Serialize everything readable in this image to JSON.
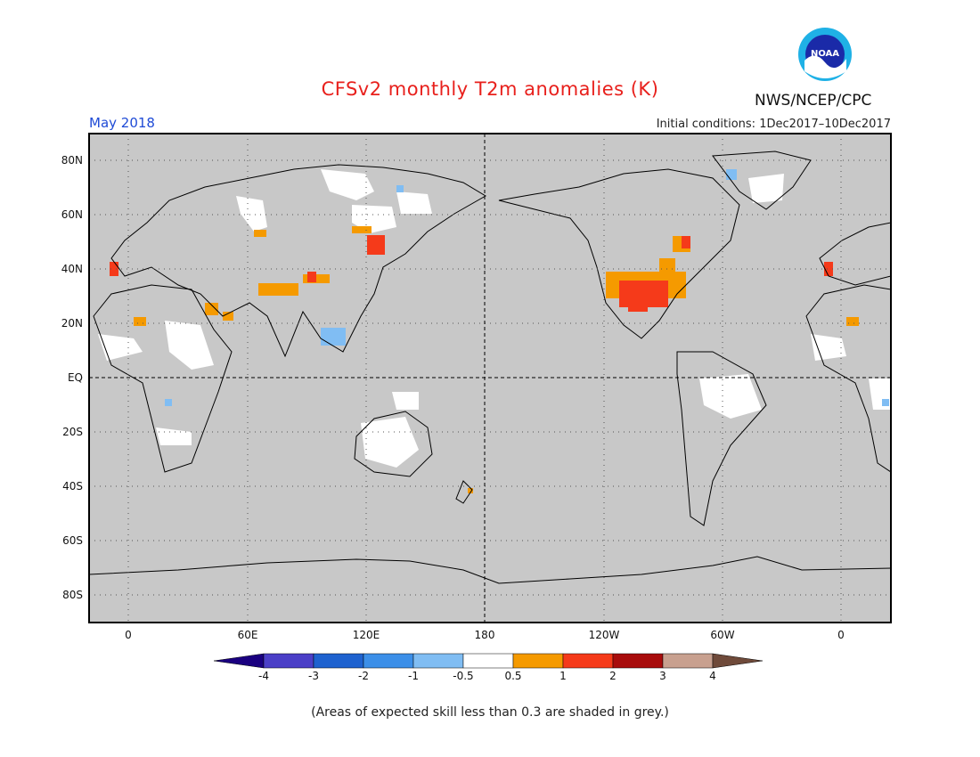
{
  "header": {
    "title": "CFSv2 monthly T2m anomalies (K)",
    "month": "May 2018",
    "initial_conditions": "Initial conditions: 1Dec2017–10Dec2017",
    "agency": "NWS/NCEP/CPC",
    "logo_text": "NOAA"
  },
  "map": {
    "projection": "equirectangular",
    "background_color": "#c8c8c8",
    "center_longitude": 180,
    "lat_labels": [
      "80N",
      "60N",
      "40N",
      "20N",
      "EQ",
      "20S",
      "40S",
      "60S",
      "80S"
    ],
    "lon_labels": [
      "0",
      "60E",
      "120E",
      "180",
      "120W",
      "60W",
      "0"
    ],
    "grid": "dotted",
    "dashed_lines": [
      "equator",
      "date line 180"
    ]
  },
  "colorbar": {
    "labels": [
      "-4",
      "-3",
      "-2",
      "-1",
      "-0.5",
      "0.5",
      "1",
      "2",
      "3",
      "4"
    ],
    "colors": [
      "#1a0080",
      "#4b3fc7",
      "#1e62cf",
      "#3c8fe8",
      "#80bdf3",
      "#ffffff",
      "#f59a00",
      "#f53a1a",
      "#a80c0c",
      "#c8a08f",
      "#6f4a3a"
    ]
  },
  "footnote": "(Areas of expected skill less than 0.3 are shaded in grey.)"
}
